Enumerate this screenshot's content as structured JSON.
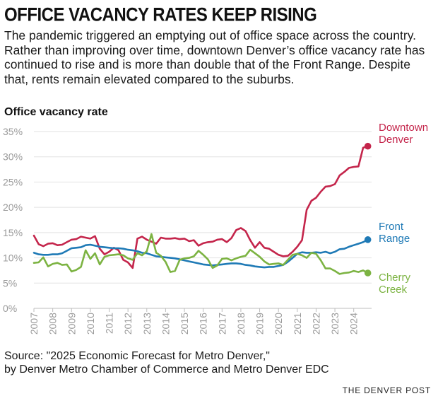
{
  "headline": "OFFICE VACANCY RATES KEEP RISING",
  "dek": "The pandemic triggered an emptying out of office space across the country. Rather than improving over time, downtown Denver’s office vacancy rate has continued to rise and is more than double that of the Front Range. Despite that, rents remain elevated compared to the suburbs.",
  "source_line1": "Source: \"2025 Economic Forecast for Metro Denver,\"",
  "source_line2": "by Denver Metro Chamber of Commerce and Metro Denver EDC",
  "credit": "THE DENVER POST",
  "chart_data": {
    "type": "line",
    "title": "Office vacancy rate",
    "xlabel": "",
    "ylabel": "Office vacancy rate",
    "xlim": [
      2007,
      2024.95
    ],
    "ylim": [
      0,
      35
    ],
    "yticks": [
      0,
      5,
      10,
      15,
      20,
      25,
      30,
      35
    ],
    "ytick_labels": [
      "0%",
      "5%",
      "10%",
      "15%",
      "20%",
      "25%",
      "30%",
      "35%"
    ],
    "xticks": [
      2007,
      2008,
      2009,
      2010,
      2011,
      2012,
      2013,
      2014,
      2015,
      2016,
      2017,
      2018,
      2019,
      2020,
      2021,
      2022,
      2023,
      2024
    ],
    "xtick_labels": [
      "2007",
      "2008",
      "2009",
      "2010",
      "2011",
      "2012",
      "2013",
      "2014",
      "2015",
      "2016",
      "2017",
      "2018",
      "2019",
      "2020",
      "2021",
      "2022",
      "2023",
      "2024"
    ],
    "grid": true,
    "series": [
      {
        "name": "Downtown Denver",
        "label_lines": [
          "Downtown",
          "Denver"
        ],
        "color": "#c4254b",
        "x": [
          2007.0,
          2007.25,
          2007.5,
          2007.75,
          2008.0,
          2008.25,
          2008.5,
          2008.75,
          2009.0,
          2009.25,
          2009.5,
          2009.75,
          2010.0,
          2010.25,
          2010.5,
          2010.75,
          2011.0,
          2011.25,
          2011.5,
          2011.75,
          2012.0,
          2012.25,
          2012.5,
          2012.75,
          2013.0,
          2013.25,
          2013.5,
          2013.75,
          2014.0,
          2014.25,
          2014.5,
          2014.75,
          2015.0,
          2015.25,
          2015.5,
          2015.75,
          2016.0,
          2016.25,
          2016.5,
          2016.75,
          2017.0,
          2017.25,
          2017.5,
          2017.75,
          2018.0,
          2018.25,
          2018.5,
          2018.75,
          2019.0,
          2019.25,
          2019.5,
          2019.75,
          2020.0,
          2020.25,
          2020.5,
          2020.75,
          2021.0,
          2021.25,
          2021.5,
          2021.75,
          2022.0,
          2022.25,
          2022.5,
          2022.75,
          2023.0,
          2023.25,
          2023.5,
          2023.75,
          2024.0,
          2024.25,
          2024.5,
          2024.75
        ],
        "values": [
          14.4,
          12.7,
          12.3,
          12.8,
          12.9,
          12.5,
          12.6,
          13.1,
          13.6,
          13.7,
          14.2,
          14.0,
          13.8,
          14.3,
          11.8,
          10.7,
          11.2,
          12.0,
          11.5,
          9.6,
          9.1,
          8.0,
          13.8,
          14.2,
          13.6,
          13.2,
          12.8,
          14.0,
          13.8,
          13.8,
          13.9,
          13.7,
          13.8,
          13.3,
          13.5,
          12.4,
          12.9,
          13.1,
          13.2,
          13.6,
          13.7,
          13.1,
          13.9,
          15.5,
          15.9,
          15.3,
          13.5,
          12.0,
          13.1,
          12.0,
          11.8,
          11.2,
          10.6,
          10.3,
          10.4,
          11.2,
          12.2,
          13.5,
          19.5,
          21.3,
          21.9,
          23.1,
          24.1,
          24.2,
          24.6,
          26.3,
          27.0,
          27.8,
          28.0,
          28.1,
          31.8,
          32.1
        ]
      },
      {
        "name": "Front Range",
        "label_lines": [
          "Front",
          "Range"
        ],
        "color": "#1f7ab6",
        "x": [
          2007.0,
          2007.25,
          2007.5,
          2007.75,
          2008.0,
          2008.25,
          2008.5,
          2008.75,
          2009.0,
          2009.25,
          2009.5,
          2009.75,
          2010.0,
          2010.25,
          2010.5,
          2010.75,
          2011.0,
          2011.25,
          2011.5,
          2011.75,
          2012.0,
          2012.25,
          2012.5,
          2012.75,
          2013.0,
          2013.25,
          2013.5,
          2013.75,
          2014.0,
          2014.25,
          2014.5,
          2014.75,
          2015.0,
          2015.25,
          2015.5,
          2015.75,
          2016.0,
          2016.25,
          2016.5,
          2016.75,
          2017.0,
          2017.25,
          2017.5,
          2017.75,
          2018.0,
          2018.25,
          2018.5,
          2018.75,
          2019.0,
          2019.25,
          2019.5,
          2019.75,
          2020.0,
          2020.25,
          2020.5,
          2020.75,
          2021.0,
          2021.25,
          2021.5,
          2021.75,
          2022.0,
          2022.25,
          2022.5,
          2022.75,
          2023.0,
          2023.25,
          2023.5,
          2023.75,
          2024.0,
          2024.25,
          2024.5,
          2024.75
        ],
        "values": [
          11.0,
          10.7,
          10.6,
          10.6,
          10.7,
          10.7,
          10.9,
          11.4,
          11.9,
          12.0,
          12.1,
          12.5,
          12.6,
          12.4,
          12.2,
          12.1,
          12.0,
          11.9,
          11.9,
          11.8,
          11.6,
          11.5,
          11.3,
          11.0,
          10.9,
          10.6,
          10.3,
          10.2,
          10.1,
          10.0,
          9.9,
          9.7,
          9.5,
          9.3,
          9.1,
          8.9,
          8.7,
          8.6,
          8.5,
          8.6,
          8.7,
          8.8,
          8.9,
          8.9,
          8.8,
          8.6,
          8.5,
          8.3,
          8.2,
          8.1,
          8.2,
          8.2,
          8.4,
          8.6,
          9.2,
          10.0,
          10.8,
          11.1,
          11.0,
          11.0,
          11.1,
          11.0,
          11.2,
          10.9,
          11.2,
          11.7,
          11.8,
          12.2,
          12.5,
          12.8,
          13.1,
          13.6
        ]
      },
      {
        "name": "Cherry Creek",
        "label_lines": [
          "Cherry",
          "Creek"
        ],
        "color": "#7cb342",
        "x": [
          2007.0,
          2007.25,
          2007.5,
          2007.75,
          2008.0,
          2008.25,
          2008.5,
          2008.75,
          2009.0,
          2009.25,
          2009.5,
          2009.75,
          2010.0,
          2010.25,
          2010.5,
          2010.75,
          2011.0,
          2011.25,
          2011.5,
          2011.75,
          2012.0,
          2012.25,
          2012.5,
          2012.75,
          2013.0,
          2013.25,
          2013.5,
          2013.75,
          2014.0,
          2014.25,
          2014.5,
          2014.75,
          2015.0,
          2015.25,
          2015.5,
          2015.75,
          2016.0,
          2016.25,
          2016.5,
          2016.75,
          2017.0,
          2017.25,
          2017.5,
          2017.75,
          2018.0,
          2018.25,
          2018.5,
          2018.75,
          2019.0,
          2019.25,
          2019.5,
          2019.75,
          2020.0,
          2020.25,
          2020.5,
          2020.75,
          2021.0,
          2021.25,
          2021.5,
          2021.75,
          2022.0,
          2022.25,
          2022.5,
          2022.75,
          2023.0,
          2023.25,
          2023.5,
          2023.75,
          2024.0,
          2024.25,
          2024.5,
          2024.75
        ],
        "values": [
          9.0,
          9.1,
          10.1,
          8.3,
          8.8,
          9.0,
          8.6,
          8.7,
          7.3,
          7.6,
          8.2,
          11.5,
          9.8,
          10.9,
          8.7,
          10.2,
          10.5,
          10.6,
          10.7,
          10.5,
          9.9,
          9.6,
          10.9,
          10.5,
          11.3,
          14.7,
          11.0,
          10.4,
          9.2,
          7.2,
          7.4,
          9.6,
          9.9,
          10.0,
          10.3,
          11.4,
          10.6,
          9.7,
          8.0,
          8.5,
          9.8,
          9.9,
          9.5,
          9.9,
          10.2,
          10.4,
          11.6,
          10.9,
          10.2,
          9.3,
          8.7,
          8.8,
          8.9,
          8.6,
          9.6,
          10.6,
          10.8,
          10.5,
          10.0,
          11.0,
          10.8,
          9.5,
          7.9,
          7.9,
          7.4,
          6.8,
          7.0,
          7.1,
          7.4,
          7.2,
          7.5,
          7.0
        ]
      }
    ]
  }
}
